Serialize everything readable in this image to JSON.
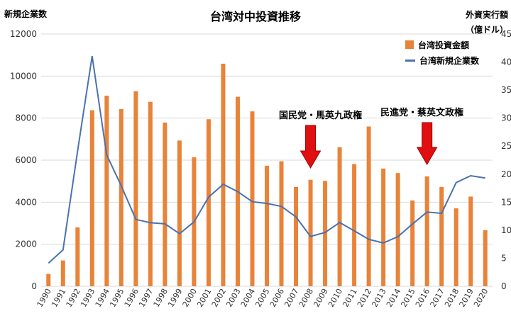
{
  "chart_data": {
    "type": "bar+line",
    "title": "台湾対中投資推移",
    "y_left_label": "新規企業数",
    "y_right_label_line1": "外資実行額",
    "y_right_label_line2": "（億ドル）",
    "y_left_range": [
      0,
      12000
    ],
    "y_left_ticks": [
      "0",
      "2000",
      "4000",
      "6000",
      "8000",
      "10000",
      "12000"
    ],
    "y_right_range": [
      0,
      45
    ],
    "y_right_ticks": [
      "0",
      "5",
      "10",
      "15",
      "20",
      "25",
      "30",
      "35",
      "40",
      "45"
    ],
    "categories": [
      "1990",
      "1991",
      "1992",
      "1993",
      "1994",
      "1995",
      "1996",
      "1997",
      "1998",
      "1999",
      "2000",
      "2001",
      "2002",
      "2003",
      "2004",
      "2005",
      "2006",
      "2007",
      "2008",
      "2009",
      "2010",
      "2011",
      "2012",
      "2013",
      "2014",
      "2015",
      "2016",
      "2017",
      "2018",
      "2019",
      "2020"
    ],
    "series": [
      {
        "name": "台湾投資金額",
        "type": "bar",
        "axis": "right",
        "color": "#E8833A",
        "values": [
          2.2,
          4.6,
          10.5,
          31.4,
          34.0,
          31.6,
          34.8,
          32.9,
          29.2,
          26.0,
          23.0,
          29.8,
          39.7,
          33.8,
          31.2,
          21.5,
          22.3,
          17.7,
          19.0,
          18.8,
          24.8,
          21.8,
          28.5,
          21.0,
          20.2,
          15.3,
          19.6,
          17.7,
          13.9,
          16.0,
          10.0
        ]
      },
      {
        "name": "台湾新規企業数",
        "type": "line",
        "axis": "left",
        "color": "#4A72B0",
        "values": [
          1100,
          1730,
          6430,
          10950,
          6250,
          4780,
          3180,
          3020,
          2970,
          2500,
          3060,
          4240,
          4850,
          4500,
          4020,
          3940,
          3800,
          3300,
          2370,
          2560,
          3030,
          2640,
          2230,
          2060,
          2360,
          2960,
          3530,
          3470,
          4930,
          5260,
          5150
        ]
      }
    ],
    "annotations": [
      {
        "text": "国民党・馬英九政権",
        "category": "2008"
      },
      {
        "text": "民進党・蔡英文政権",
        "category": "2016"
      }
    ],
    "arrow_color": "#E01010",
    "grid": true,
    "legend": "top-right"
  }
}
